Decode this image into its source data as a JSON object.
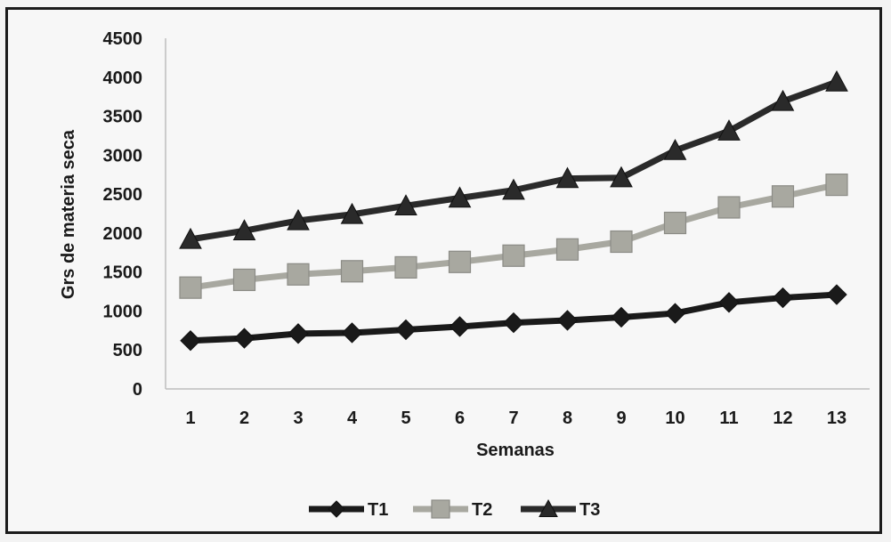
{
  "chart_data": {
    "type": "line",
    "x": [
      1,
      2,
      3,
      4,
      5,
      6,
      7,
      8,
      9,
      10,
      11,
      12,
      13
    ],
    "xlabel": "Semanas",
    "ylabel": "Grs de materia seca",
    "ylim": [
      0,
      4500
    ],
    "yticks": [
      0,
      500,
      1000,
      1500,
      2000,
      2500,
      3000,
      3500,
      4000,
      4500
    ],
    "grid": false,
    "legend_position": "bottom",
    "series": [
      {
        "name": "T1",
        "color": "#1a1a1a",
        "marker": "diamond",
        "values": [
          620,
          650,
          710,
          720,
          760,
          800,
          850,
          880,
          920,
          970,
          1110,
          1170,
          1210
        ]
      },
      {
        "name": "T2",
        "color": "#a8a8a0",
        "marker": "square",
        "values": [
          1300,
          1400,
          1470,
          1510,
          1560,
          1630,
          1710,
          1790,
          1890,
          2130,
          2330,
          2470,
          2620
        ]
      },
      {
        "name": "T3",
        "color": "#2a2a2a",
        "marker": "triangle",
        "values": [
          1920,
          2030,
          2160,
          2240,
          2350,
          2450,
          2550,
          2700,
          2710,
          3060,
          3310,
          3690,
          3940
        ]
      }
    ]
  }
}
